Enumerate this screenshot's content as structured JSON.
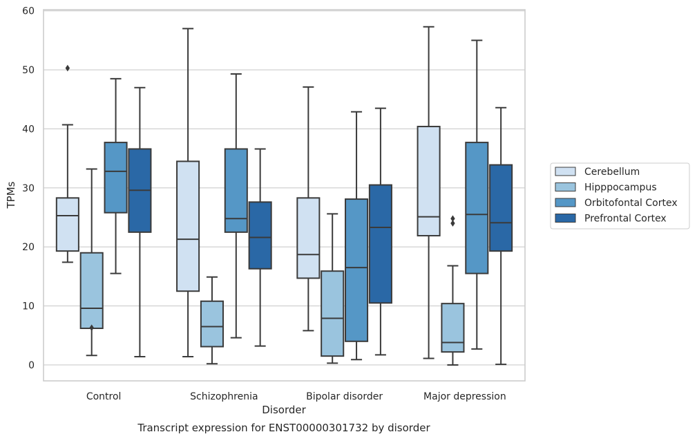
{
  "chart_data": {
    "type": "box",
    "title": "Transcript expression for ENST00000301732 by disorder",
    "xlabel": "Disorder",
    "ylabel": "TPMs",
    "ylim": [
      -2.7,
      60.2
    ],
    "yticks": [
      0,
      10,
      20,
      30,
      40,
      50,
      60
    ],
    "grid": true,
    "legend_position": "right",
    "categories": [
      "Control",
      "Schizophrenia",
      "Bipolar disorder",
      "Major depression"
    ],
    "series": [
      {
        "name": "Cerebellum",
        "color": "#d0e1f2",
        "boxes": [
          {
            "whisker_low": 17.4,
            "q1": 19.3,
            "median": 25.3,
            "q3": 28.3,
            "whisker_high": 40.7,
            "outliers": [
              50.3
            ]
          },
          {
            "whisker_low": 1.4,
            "q1": 12.5,
            "median": 21.3,
            "q3": 34.5,
            "whisker_high": 57.0,
            "outliers": []
          },
          {
            "whisker_low": 5.8,
            "q1": 14.7,
            "median": 18.7,
            "q3": 28.3,
            "whisker_high": 47.1,
            "outliers": []
          },
          {
            "whisker_low": 1.1,
            "q1": 21.9,
            "median": 25.1,
            "q3": 40.4,
            "whisker_high": 57.3,
            "outliers": []
          }
        ]
      },
      {
        "name": "Hipppocampus",
        "color": "#9ac4de",
        "boxes": [
          {
            "whisker_low": 1.6,
            "q1": 6.2,
            "median": 9.6,
            "q3": 19.0,
            "whisker_high": 33.2,
            "outliers": [
              6.3
            ]
          },
          {
            "whisker_low": 0.2,
            "q1": 3.1,
            "median": 6.5,
            "q3": 10.8,
            "whisker_high": 14.9,
            "outliers": []
          },
          {
            "whisker_low": 0.3,
            "q1": 1.5,
            "median": 7.9,
            "q3": 15.9,
            "whisker_high": 25.6,
            "outliers": []
          },
          {
            "whisker_low": 0.0,
            "q1": 2.2,
            "median": 3.8,
            "q3": 10.4,
            "whisker_high": 16.8,
            "outliers": [
              24.8,
              24.0
            ]
          }
        ]
      },
      {
        "name": "Orbitofontal Cortex",
        "color": "#5597c6",
        "boxes": [
          {
            "whisker_low": 15.5,
            "q1": 25.8,
            "median": 32.8,
            "q3": 37.7,
            "whisker_high": 48.5,
            "outliers": []
          },
          {
            "whisker_low": 4.6,
            "q1": 22.5,
            "median": 24.8,
            "q3": 36.6,
            "whisker_high": 49.3,
            "outliers": []
          },
          {
            "whisker_low": 0.9,
            "q1": 4.0,
            "median": 16.5,
            "q3": 28.1,
            "whisker_high": 42.9,
            "outliers": []
          },
          {
            "whisker_low": 2.7,
            "q1": 15.5,
            "median": 25.5,
            "q3": 37.7,
            "whisker_high": 55.0,
            "outliers": []
          }
        ]
      },
      {
        "name": "Prefrontal Cortex",
        "color": "#2a68a6",
        "boxes": [
          {
            "whisker_low": 1.4,
            "q1": 22.5,
            "median": 29.6,
            "q3": 36.6,
            "whisker_high": 47.0,
            "outliers": []
          },
          {
            "whisker_low": 3.2,
            "q1": 16.3,
            "median": 21.6,
            "q3": 27.6,
            "whisker_high": 36.6,
            "outliers": []
          },
          {
            "whisker_low": 1.7,
            "q1": 10.5,
            "median": 23.3,
            "q3": 30.5,
            "whisker_high": 43.5,
            "outliers": []
          },
          {
            "whisker_low": 0.1,
            "q1": 19.3,
            "median": 24.1,
            "q3": 33.9,
            "whisker_high": 43.6,
            "outliers": []
          }
        ]
      }
    ]
  }
}
